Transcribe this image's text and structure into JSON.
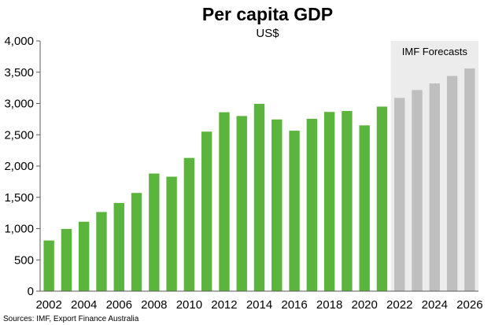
{
  "chart_data": {
    "type": "bar",
    "title": "Per capita GDP",
    "subtitle": "US$",
    "categories": [
      "2002",
      "2003",
      "2004",
      "2005",
      "2006",
      "2007",
      "2008",
      "2009",
      "2010",
      "2011",
      "2012",
      "2013",
      "2014",
      "2015",
      "2016",
      "2017",
      "2018",
      "2019",
      "2020",
      "2021",
      "2022",
      "2023",
      "2024",
      "2025",
      "2026"
    ],
    "x_tick_labels": [
      "2002",
      "2004",
      "2006",
      "2008",
      "2010",
      "2012",
      "2014",
      "2016",
      "2018",
      "2020",
      "2022",
      "2024",
      "2026"
    ],
    "series": [
      {
        "values": [
          810,
          995,
          1110,
          1265,
          1410,
          1570,
          1880,
          1830,
          2130,
          2550,
          2860,
          2800,
          2995,
          2745,
          2565,
          2755,
          2865,
          2880,
          2650,
          2950,
          3090,
          3215,
          3320,
          3440,
          3560
        ]
      }
    ],
    "forecast_start_category": "2022",
    "forecast_label": "IMF Forecasts",
    "ylim": [
      0,
      4000
    ],
    "y_ticks": [
      0,
      500,
      1000,
      1500,
      2000,
      2500,
      3000,
      3500,
      4000
    ],
    "y_tick_labels": [
      "0",
      "500",
      "1,000",
      "1,500",
      "2,000",
      "2,500",
      "3,000",
      "3,500",
      "4,000"
    ],
    "xlabel": "",
    "ylabel": "",
    "grid": false,
    "colors": {
      "actual": "#5bb43c",
      "forecast": "#bfbfbf",
      "forecast_background": "#ececec",
      "axis": "#595959"
    },
    "source": "Sources: IMF, Export Finance Australia"
  }
}
